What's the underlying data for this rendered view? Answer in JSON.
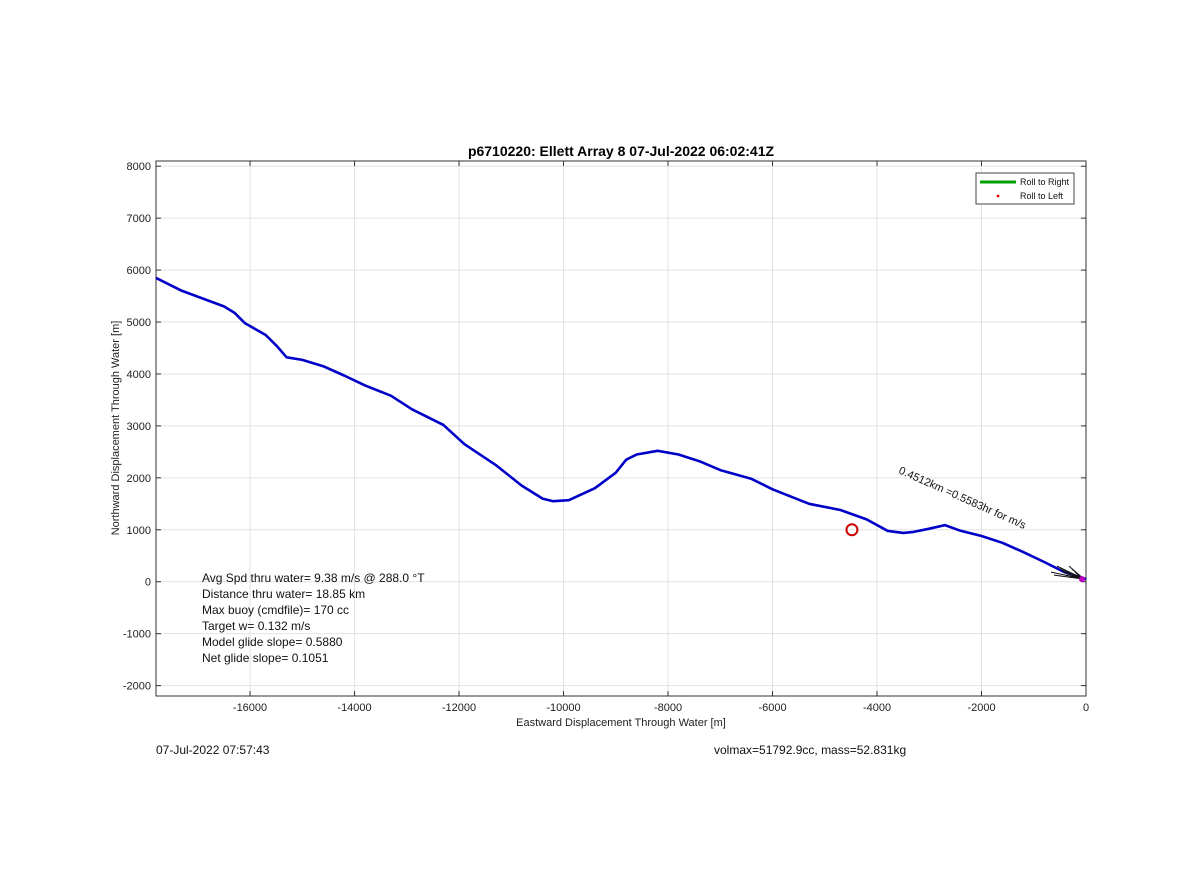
{
  "chart_data": {
    "type": "line",
    "title": "p6710220: Ellett Array 8 07-Jul-2022 06:02:41Z",
    "xlabel": "Eastward Displacement Through Water [m]",
    "ylabel": "Northward Displacement Through Water [m]",
    "xlim": [
      -17800,
      0
    ],
    "ylim": [
      -2200,
      8100
    ],
    "grid": true,
    "xticks": [
      -16000,
      -14000,
      -12000,
      -10000,
      -8000,
      -6000,
      -4000,
      -2000,
      0
    ],
    "yticks": [
      -2000,
      -1000,
      0,
      1000,
      2000,
      3000,
      4000,
      5000,
      6000,
      7000,
      8000
    ],
    "xtick_labels": [
      "-16000",
      "-14000",
      "-12000",
      "-10000",
      "-8000",
      "-6000",
      "-4000",
      "-2000",
      "0"
    ],
    "ytick_labels": [
      "-2000",
      "-1000",
      "0",
      "1000",
      "2000",
      "3000",
      "4000",
      "5000",
      "6000",
      "7000",
      "8000"
    ],
    "legend": {
      "placement": "top-right",
      "entries": [
        {
          "label": "Roll to Right",
          "color": "#00a000",
          "marker": "line"
        },
        {
          "label": "Roll to Left",
          "color": "#e00000",
          "marker": "dot"
        }
      ]
    },
    "series": [
      {
        "color": "#0000c8",
        "x": [
          -17800,
          -17300,
          -16900,
          -16500,
          -16300,
          -16100,
          -15700,
          -15500,
          -15300,
          -15000,
          -14600,
          -14200,
          -13800,
          -13300,
          -12900,
          -12300,
          -11900,
          -11300,
          -10800,
          -10400,
          -10200,
          -9900,
          -9400,
          -9000,
          -8800,
          -8600,
          -8200,
          -7800,
          -7400,
          -7000,
          -6400,
          -6000,
          -5300,
          -4700,
          -4200,
          -3800,
          -3500,
          -3300,
          -3000,
          -2700,
          -2400,
          -2000,
          -1600,
          -1200,
          -800,
          -400,
          -150,
          0
        ],
        "y": [
          5850,
          5600,
          5450,
          5300,
          5180,
          4980,
          4750,
          4550,
          4320,
          4270,
          4150,
          3970,
          3780,
          3580,
          3320,
          3020,
          2650,
          2250,
          1850,
          1600,
          1550,
          1570,
          1800,
          2100,
          2350,
          2450,
          2520,
          2450,
          2320,
          2150,
          1980,
          1780,
          1500,
          1380,
          1200,
          980,
          940,
          960,
          1020,
          1090,
          980,
          880,
          750,
          570,
          380,
          180,
          100,
          50
        ]
      }
    ],
    "annotations": [
      {
        "kind": "circle-marker",
        "x": -4480,
        "y": 1000,
        "color": "#cc0000"
      },
      {
        "kind": "text",
        "text": "0.4512km",
        "x": -1600,
        "y": 600,
        "rotation": 24
      },
      {
        "kind": "text",
        "text": "=0.5583hr",
        "x": -1600,
        "y": 600,
        "rotation": 24
      },
      {
        "kind": "text",
        "text": "for",
        "x": -1600,
        "y": 600,
        "rotation": 24
      },
      {
        "kind": "text",
        "text": "m/s",
        "x": -1600,
        "y": 600,
        "rotation": 24
      }
    ]
  },
  "stats": {
    "line1": "Avg Spd thru water=  9.38 m/s @ 288.0 °T",
    "line2": "Distance thru water= 18.85 km",
    "line3": "Max buoy (cmdfile)= 170 cc",
    "line4": "Target w= 0.132 m/s",
    "line5": "Model glide slope= 0.5880",
    "line6": "Net glide slope= 0.1051"
  },
  "footer": {
    "timestamp": "07-Jul-2022 07:57:43",
    "info": "volmax=51792.9cc, mass=52.831kg"
  },
  "colors": {
    "track": "#0000c8",
    "roll_right": "#00a000",
    "roll_left": "#e00000",
    "marker": "#cc0000",
    "end_marker": "#c000c0"
  }
}
